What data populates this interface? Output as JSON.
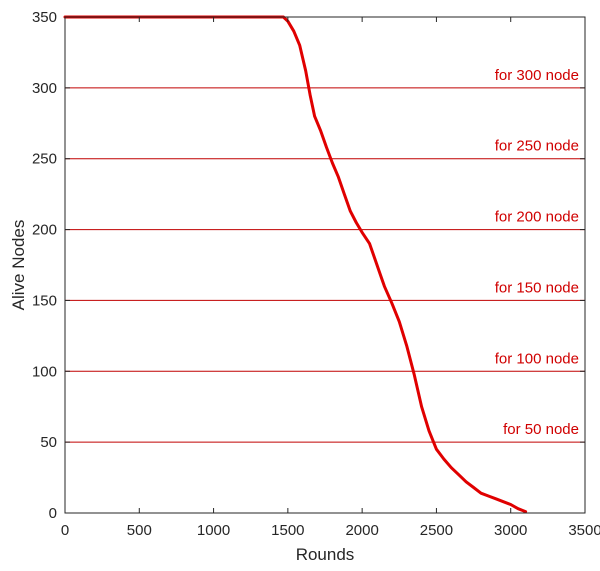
{
  "chart_data": {
    "type": "line",
    "title": "",
    "xlabel": "Rounds",
    "ylabel": "Alive Nodes",
    "xlim": [
      0,
      3500
    ],
    "ylim": [
      0,
      350
    ],
    "xticks": [
      0,
      500,
      1000,
      1500,
      2000,
      2500,
      3000,
      3500
    ],
    "yticks": [
      0,
      50,
      100,
      150,
      200,
      250,
      300,
      350
    ],
    "grid": false,
    "colors": {
      "series": "#e00000",
      "reference_lines": "#c00000",
      "reference_text": "#d00000",
      "axes": "#262626"
    },
    "series": [
      {
        "x": [
          0,
          1400,
          1470,
          1500,
          1540,
          1580,
          1620,
          1650,
          1680,
          1720,
          1760,
          1800,
          1840,
          1880,
          1920,
          1960,
          2000,
          2050,
          2100,
          2150,
          2200,
          2250,
          2300,
          2350,
          2400,
          2450,
          2500,
          2550,
          2600,
          2650,
          2700,
          2750,
          2800,
          2850,
          2900,
          2950,
          3000,
          3050,
          3100
        ],
        "y": [
          350,
          350,
          350,
          347,
          340,
          330,
          312,
          295,
          280,
          270,
          258,
          247,
          237,
          225,
          213,
          205,
          198,
          190,
          175,
          160,
          148,
          135,
          118,
          98,
          75,
          58,
          45,
          38,
          32,
          27,
          22,
          18,
          14,
          12,
          10,
          8,
          6,
          3,
          1
        ]
      }
    ],
    "reference_lines": [
      {
        "y": 300,
        "label": "for 300 node"
      },
      {
        "y": 250,
        "label": "for 250 node"
      },
      {
        "y": 200,
        "label": "for 200 node"
      },
      {
        "y": 150,
        "label": "for 150 node"
      },
      {
        "y": 100,
        "label": "for 100 node"
      },
      {
        "y": 50,
        "label": "for 50 node"
      }
    ]
  }
}
